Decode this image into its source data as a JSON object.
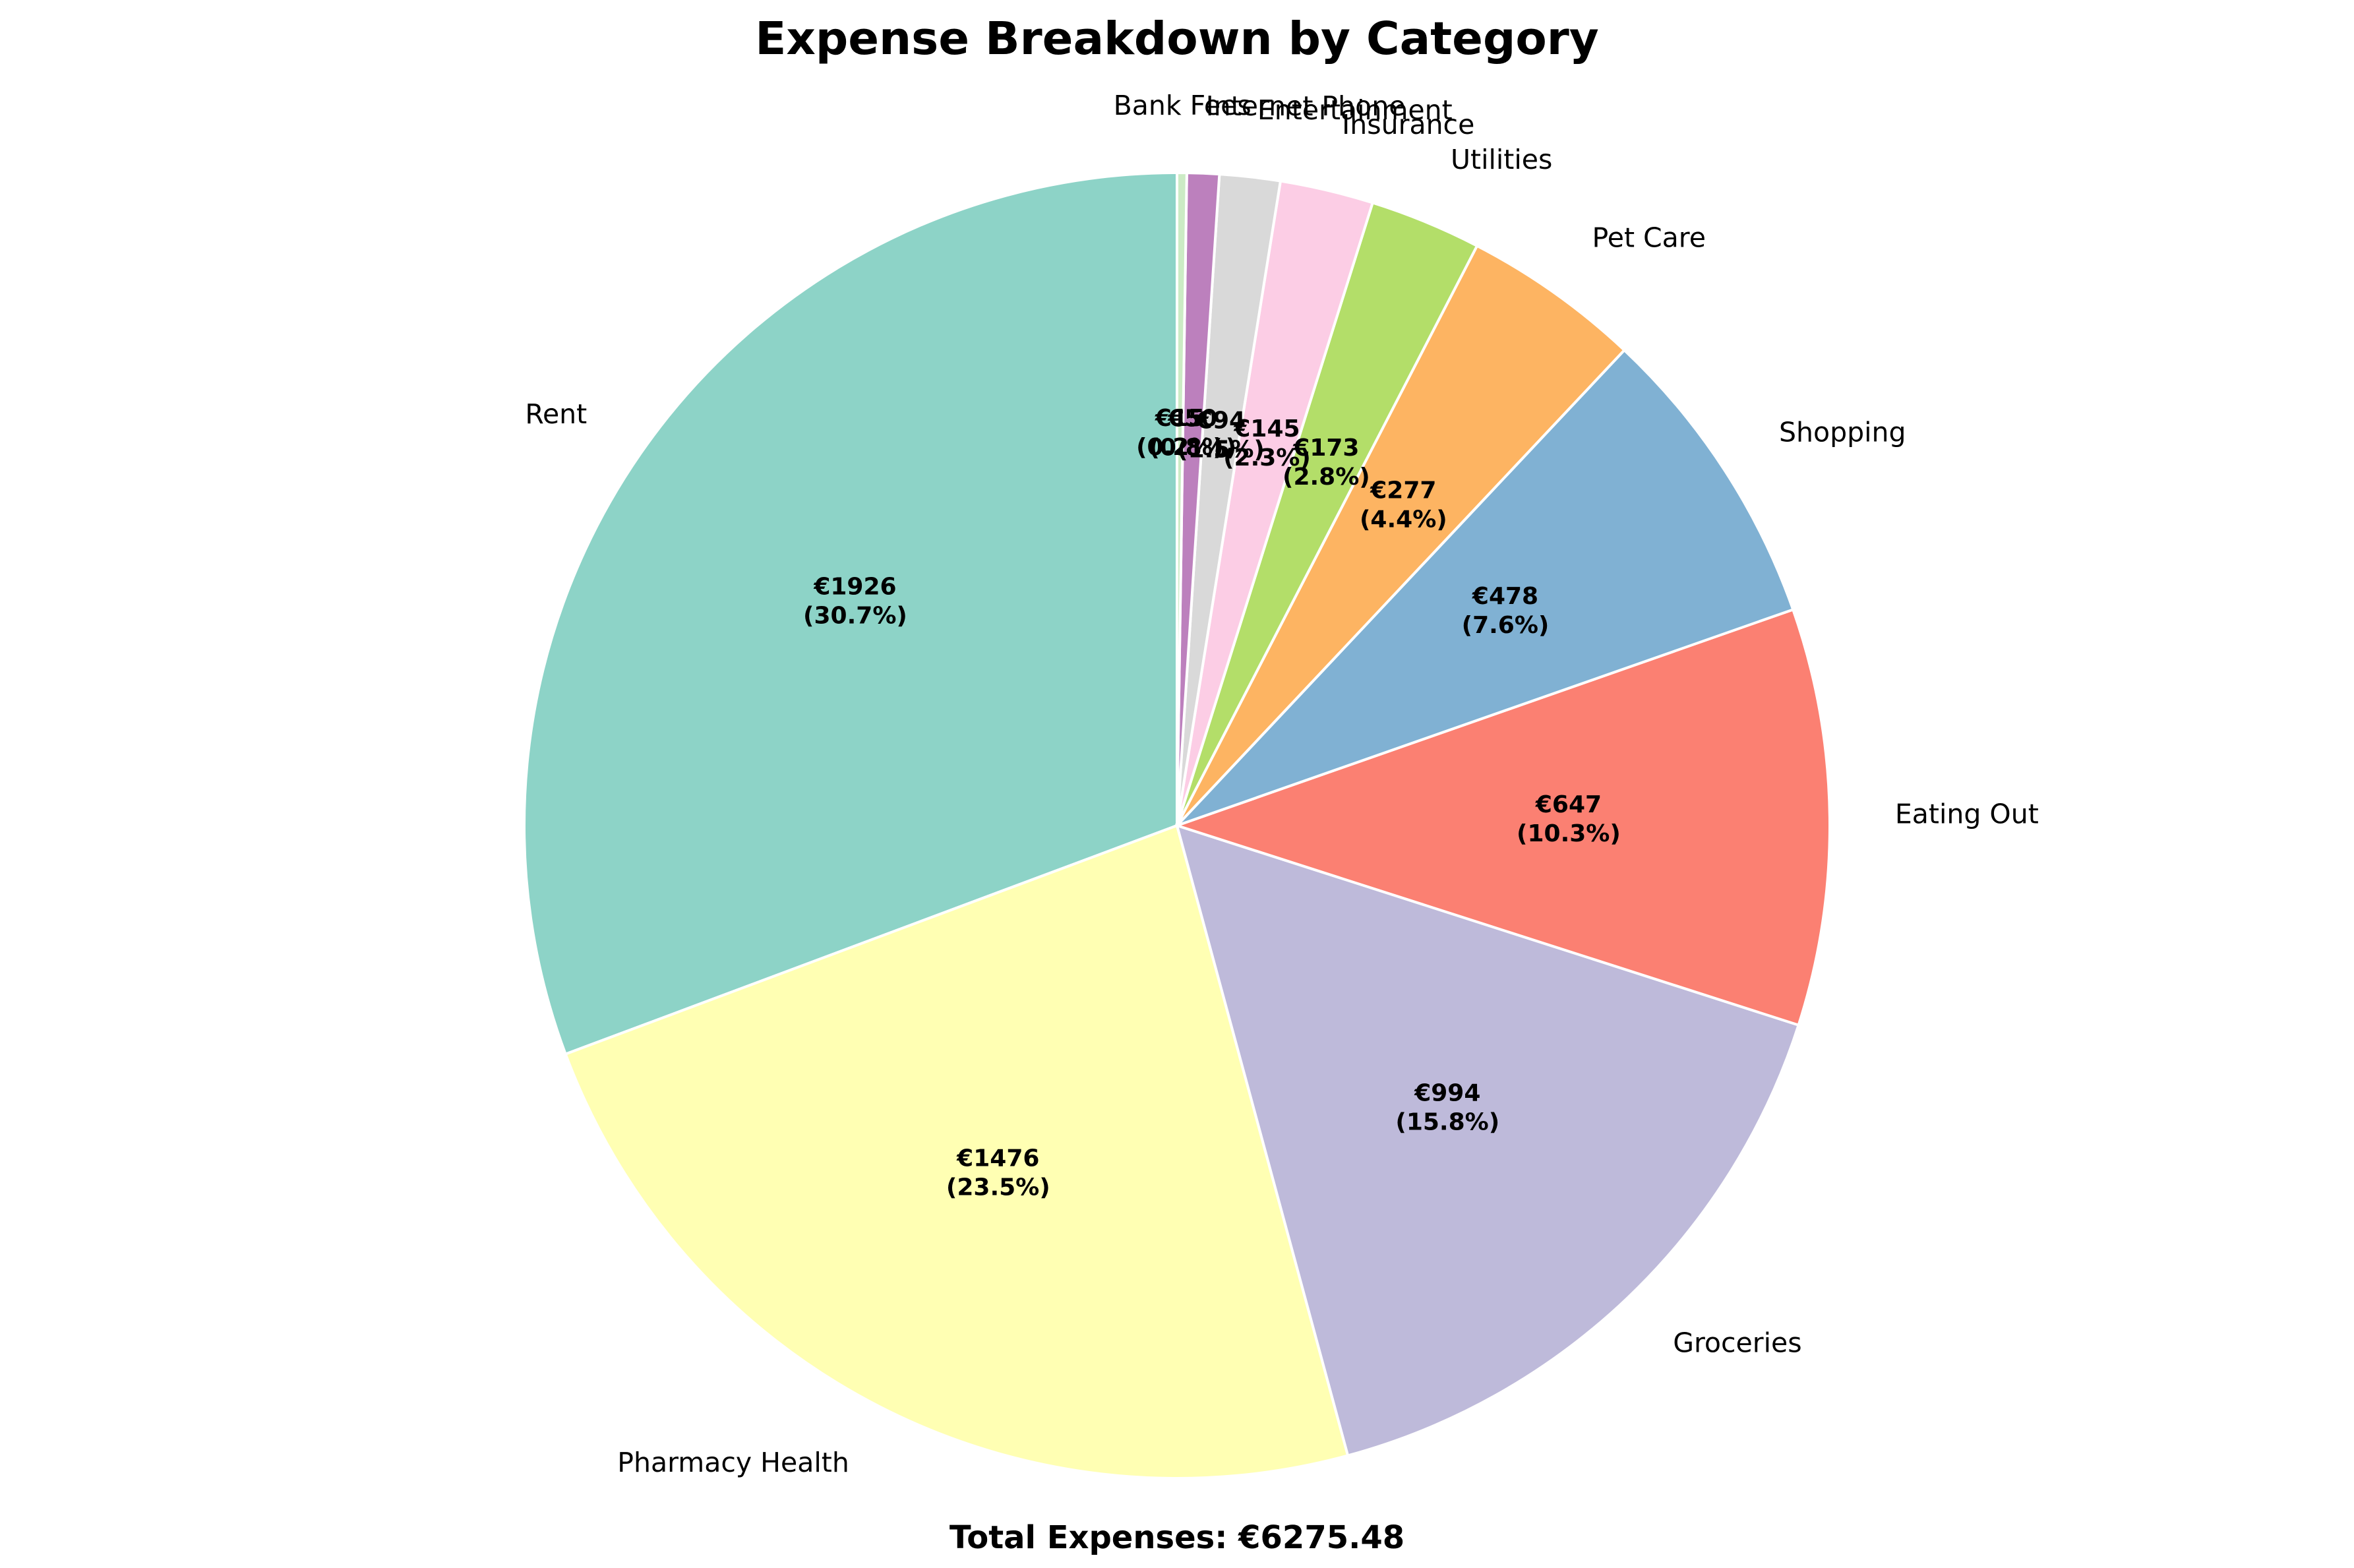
{
  "chart_data": {
    "type": "pie",
    "title": "Expense Breakdown by Category",
    "total_text": "Total Expenses: €6275.48",
    "start_angle_deg": 90,
    "direction": "counterclockwise",
    "slices": [
      {
        "label": "Rent",
        "value": 1926,
        "value_text": "€1926",
        "pct_text": "(30.7%)",
        "color": "#8dd3c7"
      },
      {
        "label": "Pharmacy Health",
        "value": 1476,
        "value_text": "€1476",
        "pct_text": "(23.5%)",
        "color": "#ffffb3"
      },
      {
        "label": "Groceries",
        "value": 994,
        "value_text": "€994",
        "pct_text": "(15.8%)",
        "color": "#bebada"
      },
      {
        "label": "Eating Out",
        "value": 647,
        "value_text": "€647",
        "pct_text": "(10.3%)",
        "color": "#fb8072"
      },
      {
        "label": "Shopping",
        "value": 478,
        "value_text": "€478",
        "pct_text": "(7.6%)",
        "color": "#80b1d3"
      },
      {
        "label": "Pet Care",
        "value": 277,
        "value_text": "€277",
        "pct_text": "(4.4%)",
        "color": "#fdb462"
      },
      {
        "label": "Utilities",
        "value": 173,
        "value_text": "€173",
        "pct_text": "(2.8%)",
        "color": "#b3de69"
      },
      {
        "label": "Insurance",
        "value": 145,
        "value_text": "€145",
        "pct_text": "(2.3%)",
        "color": "#fccde5"
      },
      {
        "label": "Entertainment",
        "value": 94,
        "value_text": "€94",
        "pct_text": "(1.5%)",
        "color": "#d9d9d9"
      },
      {
        "label": "Internet Phone",
        "value": 50,
        "value_text": "€50",
        "pct_text": "(0.8%)",
        "color": "#bc80bd"
      },
      {
        "label": "Bank Fees",
        "value": 15,
        "value_text": "€15",
        "pct_text": "(0.2%)",
        "color": "#ccebc5"
      }
    ]
  }
}
